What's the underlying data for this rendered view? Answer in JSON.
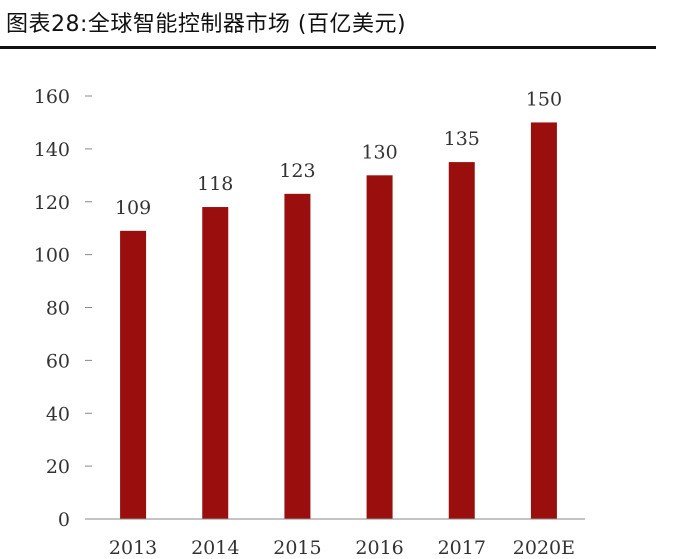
{
  "title": "图表28:全球智能控制器市场 (百亿美元)",
  "colors": {
    "bar": "#9B0E0E",
    "grid": "#c8c8c8",
    "axis": "#888888",
    "text": "#333333"
  },
  "chart_data": {
    "type": "bar",
    "categories": [
      "2013",
      "2014",
      "2015",
      "2016",
      "2017",
      "2020E"
    ],
    "values": [
      109,
      118,
      123,
      130,
      135,
      150
    ],
    "data_labels": [
      "109",
      "118",
      "123",
      "130",
      "135",
      "150"
    ],
    "ylim": [
      0,
      160
    ],
    "yticks": [
      0,
      20,
      40,
      60,
      80,
      100,
      120,
      140,
      160
    ],
    "grid": false,
    "legend": "none"
  }
}
